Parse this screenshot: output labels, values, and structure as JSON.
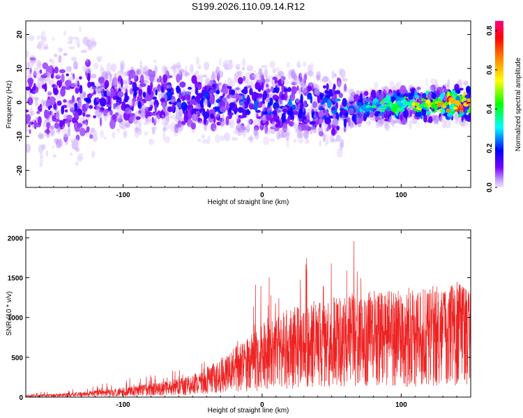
{
  "chart_data": [
    {
      "type": "heatmap",
      "title": "S199.2026.110.09.14.R12",
      "xlabel": "Height of straight line (km)",
      "ylabel": "Frequency (Hz)",
      "xlim": [
        -170,
        150
      ],
      "ylim": [
        -25,
        24
      ],
      "xticks": [
        -100,
        0,
        100
      ],
      "xtick_labels": [
        "-100",
        "0",
        "100"
      ],
      "yticks": [
        20,
        10,
        0,
        -10,
        -20
      ],
      "ytick_labels": [
        "20",
        "10",
        "0",
        "-10",
        "-20"
      ],
      "colorbar": {
        "label": "Normalized spectral amplitude",
        "range": [
          0.0,
          0.85
        ],
        "ticks": [
          0.0,
          0.2,
          0.4,
          0.6,
          0.8
        ],
        "tick_labels": [
          "0.0",
          "0.2",
          "0.4",
          "0.6",
          "0.8"
        ],
        "colormap": [
          "#e8d4ff",
          "#7b00ff",
          "#0000ff",
          "#00ffff",
          "#00ff00",
          "#ffff00",
          "#ff8000",
          "#ff0000",
          "#ff0080"
        ]
      },
      "ridge": {
        "description": "dominant energy band near 0 Hz strengthening toward positive heights",
        "points": [
          [
            -170,
            1
          ],
          [
            -100,
            1
          ],
          [
            0,
            0
          ],
          [
            60,
            -2
          ],
          [
            80,
            -1
          ],
          [
            100,
            -1
          ],
          [
            150,
            0
          ]
        ],
        "peak_amplitude_by_height": [
          [
            -170,
            0.12
          ],
          [
            -50,
            0.18
          ],
          [
            50,
            0.22
          ],
          [
            70,
            0.32
          ],
          [
            100,
            0.45
          ],
          [
            120,
            0.62
          ],
          [
            150,
            0.8
          ]
        ]
      }
    },
    {
      "type": "line",
      "title": "",
      "xlabel": "Height of straight line (km)",
      "ylabel": "SNR (10 * v/v)",
      "xlim": [
        -170,
        150
      ],
      "ylim": [
        0,
        2100
      ],
      "xticks": [
        -100,
        0,
        100
      ],
      "xtick_labels": [
        "-100",
        "0",
        "100"
      ],
      "yticks": [
        0,
        500,
        1000,
        1500,
        2000
      ],
      "ytick_labels": [
        "0",
        "500",
        "1000",
        "1500",
        "2000"
      ],
      "line_color": "#ee2222",
      "envelope": {
        "x": [
          -170,
          -150,
          -130,
          -110,
          -90,
          -70,
          -50,
          -40,
          -30,
          -20,
          -10,
          0,
          10,
          20,
          30,
          40,
          50,
          60,
          70,
          80,
          90,
          100,
          110,
          120,
          130,
          140,
          150
        ],
        "mean": [
          15,
          25,
          40,
          60,
          90,
          120,
          170,
          230,
          300,
          380,
          460,
          540,
          620,
          680,
          720,
          740,
          760,
          780,
          800,
          810,
          810,
          820,
          830,
          850,
          870,
          880,
          900
        ],
        "max": [
          40,
          90,
          130,
          200,
          250,
          320,
          420,
          520,
          750,
          1000,
          1350,
          1500,
          1700,
          2050,
          1850,
          1900,
          1800,
          1950,
          2000,
          1700,
          1600,
          1450,
          1450,
          1500,
          1300,
          1450,
          1300
        ]
      }
    }
  ]
}
